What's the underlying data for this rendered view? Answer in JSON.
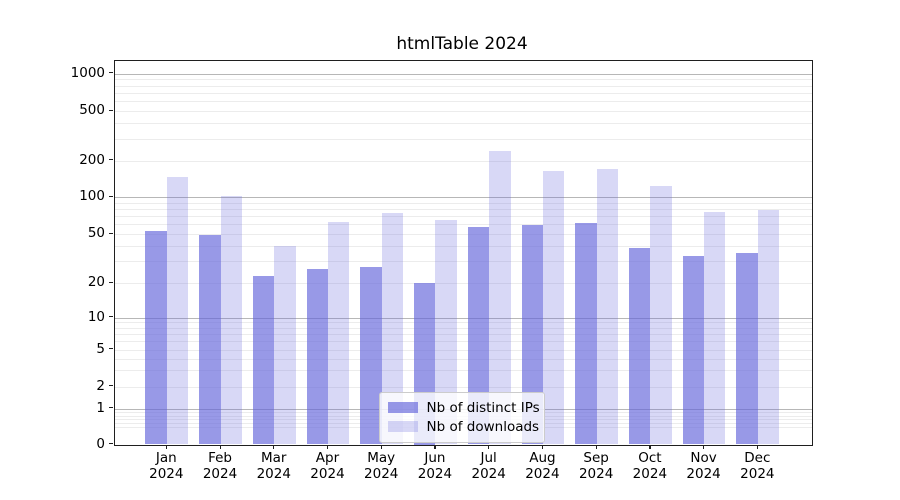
{
  "title": "htmlTable 2024",
  "legend": {
    "position": "lower center",
    "items": [
      {
        "label": "Nb of distinct IPs"
      },
      {
        "label": "Nb of downloads"
      }
    ]
  },
  "chart_data": {
    "type": "bar",
    "title": "htmlTable 2024",
    "categories": [
      "Jan",
      "Feb",
      "Mar",
      "Apr",
      "May",
      "Jun",
      "Jul",
      "Aug",
      "Sep",
      "Oct",
      "Nov",
      "Dec"
    ],
    "year": "2024",
    "series": [
      {
        "name": "Nb of distinct IPs",
        "color": "rgba(98,100,218,0.66)",
        "values": [
          53,
          49,
          23,
          26,
          27,
          20,
          57,
          59,
          62,
          39,
          33,
          35
        ]
      },
      {
        "name": "Nb of downloads",
        "color": "rgba(98,100,218,0.25)",
        "values": [
          145,
          102,
          40,
          63,
          74,
          65,
          240,
          165,
          170,
          124,
          75,
          79
        ]
      }
    ],
    "xlabel": "",
    "ylabel": "",
    "y_scale": "symlog",
    "y_ticks": [
      0,
      1,
      2,
      5,
      10,
      20,
      50,
      100,
      200,
      500,
      1000
    ],
    "y_tick_labels": [
      "0",
      "1",
      "2",
      "5",
      "10",
      "20",
      "50",
      "100",
      "200",
      "500",
      "1000"
    ],
    "ylim": [
      0,
      1400
    ],
    "grid": true,
    "legend_position": "lower center"
  }
}
